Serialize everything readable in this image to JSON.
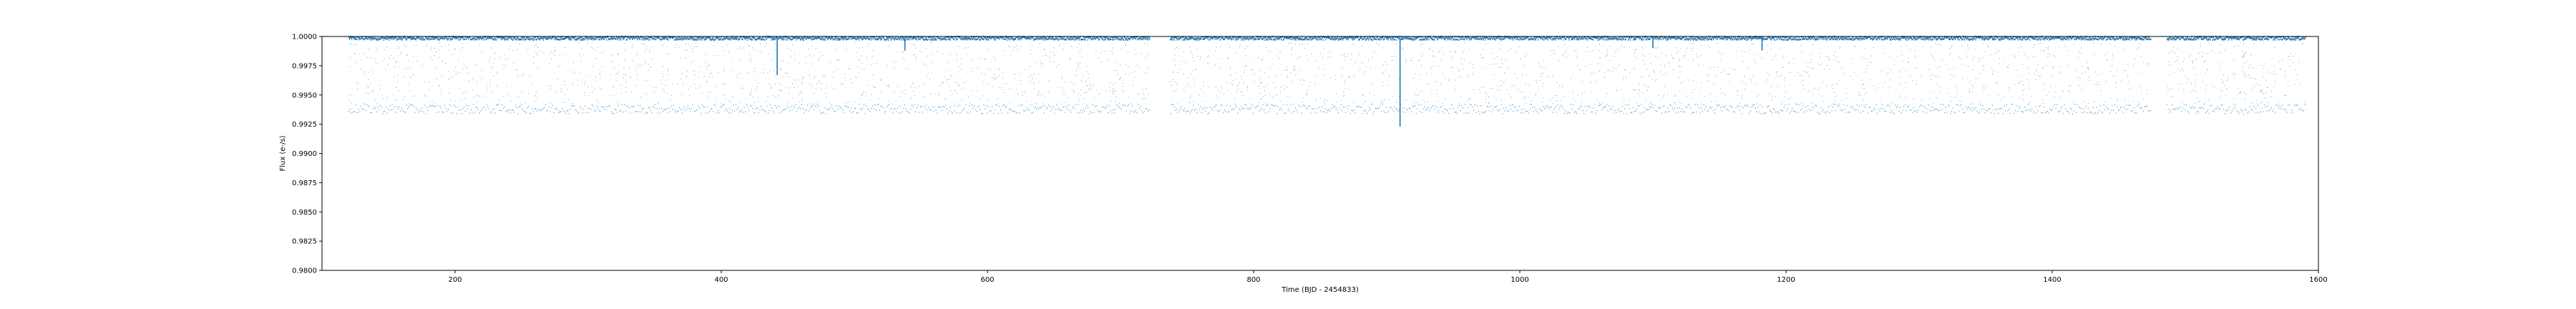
{
  "chart_data": {
    "type": "scatter",
    "title": "",
    "xlabel": "Time (BJD - 2454833)",
    "ylabel": "Flux (e-/s)",
    "xlim": [
      100,
      1600
    ],
    "ylim": [
      0.98,
      1.0
    ],
    "xticks": [
      200,
      400,
      600,
      800,
      1000,
      1200,
      1400,
      1600
    ],
    "xtick_labels": [
      "200",
      "400",
      "600",
      "800",
      "1000",
      "1200",
      "1400",
      "1600"
    ],
    "yticks": [
      0.98,
      0.9825,
      0.985,
      0.9875,
      0.99,
      0.9925,
      0.995,
      0.9975,
      1.0
    ],
    "ytick_labels": [
      "0.9800",
      "0.9825",
      "0.9850",
      "0.9875",
      "0.9900",
      "0.9925",
      "0.9950",
      "0.9975",
      "1.0000"
    ],
    "grid": false,
    "marker_color": "#1f77b4",
    "series": [
      {
        "x_range": [
          120,
          1590
        ],
        "gaps": [
          [
            722,
            737
          ],
          [
            1474,
            1486
          ]
        ],
        "baseline": 0.99985,
        "eclipse_depth_band": [
          0.9934,
          0.9942
        ],
        "deep_events": [
          {
            "x": 442,
            "y": 0.9967
          },
          {
            "x": 538,
            "y": 0.9988
          },
          {
            "x": 910,
            "y": 0.9923
          },
          {
            "x": 1100,
            "y": 0.999
          },
          {
            "x": 1182,
            "y": 0.9988
          }
        ]
      }
    ]
  }
}
